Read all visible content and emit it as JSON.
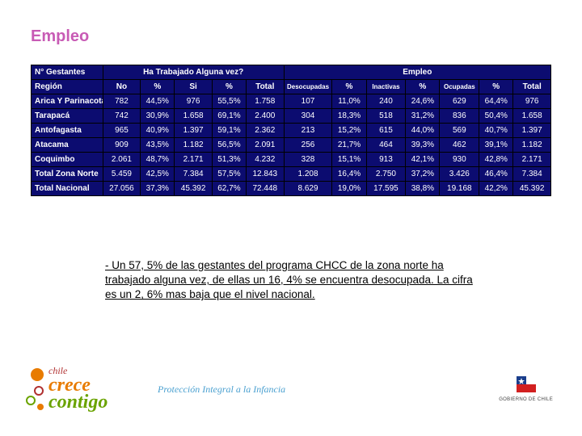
{
  "title": "Empleo",
  "table": {
    "header1": {
      "n_gestantes": "N° Gestantes",
      "ha_trabajado": "Ha Trabajado Alguna vez?",
      "empleo": "Empleo"
    },
    "header2": {
      "region": "Región",
      "no": "No",
      "no_pct": "%",
      "si": "Si",
      "si_pct": "%",
      "total1": "Total",
      "desoc": "Desocupadas",
      "desoc_pct": "%",
      "inact": "Inactivas",
      "inact_pct": "%",
      "ocup": "Ocupadas",
      "ocup_pct": "%",
      "total2": "Total"
    },
    "rows": [
      {
        "region": "Arica Y Parinacota",
        "no": "782",
        "no_pct": "44,5%",
        "si": "976",
        "si_pct": "55,5%",
        "total1": "1.758",
        "desoc": "107",
        "desoc_pct": "11,0%",
        "inact": "240",
        "inact_pct": "24,6%",
        "ocup": "629",
        "ocup_pct": "64,4%",
        "total2": "976"
      },
      {
        "region": "Tarapacá",
        "no": "742",
        "no_pct": "30,9%",
        "si": "1.658",
        "si_pct": "69,1%",
        "total1": "2.400",
        "desoc": "304",
        "desoc_pct": "18,3%",
        "inact": "518",
        "inact_pct": "31,2%",
        "ocup": "836",
        "ocup_pct": "50,4%",
        "total2": "1.658"
      },
      {
        "region": "Antofagasta",
        "no": "965",
        "no_pct": "40,9%",
        "si": "1.397",
        "si_pct": "59,1%",
        "total1": "2.362",
        "desoc": "213",
        "desoc_pct": "15,2%",
        "inact": "615",
        "inact_pct": "44,0%",
        "ocup": "569",
        "ocup_pct": "40,7%",
        "total2": "1.397"
      },
      {
        "region": "Atacama",
        "no": "909",
        "no_pct": "43,5%",
        "si": "1.182",
        "si_pct": "56,5%",
        "total1": "2.091",
        "desoc": "256",
        "desoc_pct": "21,7%",
        "inact": "464",
        "inact_pct": "39,3%",
        "ocup": "462",
        "ocup_pct": "39,1%",
        "total2": "1.182"
      },
      {
        "region": "Coquimbo",
        "no": "2.061",
        "no_pct": "48,7%",
        "si": "2.171",
        "si_pct": "51,3%",
        "total1": "4.232",
        "desoc": "328",
        "desoc_pct": "15,1%",
        "inact": "913",
        "inact_pct": "42,1%",
        "ocup": "930",
        "ocup_pct": "42,8%",
        "total2": "2.171"
      },
      {
        "region": "Total Zona Norte",
        "no": "5.459",
        "no_pct": "42,5%",
        "si": "7.384",
        "si_pct": "57,5%",
        "total1": "12.843",
        "desoc": "1.208",
        "desoc_pct": "16,4%",
        "inact": "2.750",
        "inact_pct": "37,2%",
        "ocup": "3.426",
        "ocup_pct": "46,4%",
        "total2": "7.384"
      },
      {
        "region": "Total Nacional",
        "no": "27.056",
        "no_pct": "37,3%",
        "si": "45.392",
        "si_pct": "62,7%",
        "total1": "72.448",
        "desoc": "8.629",
        "desoc_pct": "19,0%",
        "inact": "17.595",
        "inact_pct": "38,8%",
        "ocup": "19.168",
        "ocup_pct": "42,2%",
        "total2": "45.392"
      }
    ]
  },
  "bullet": "- Un 57, 5% de las gestantes del programa CHCC de la zona norte ha trabajado alguna vez, de ellas un 16, 4% se encuentra desocupada. La cifra es un 2, 6% mas baja que el nivel nacional.",
  "logo": {
    "chile": "chile",
    "crece": "crece",
    "contigo": "contigo"
  },
  "slogan": "Protección Integral a la Infancia",
  "gov": "GOBIERNO DE CHILE",
  "colors": {
    "title": "#c85bb5",
    "table_bg": "#0c0c70",
    "orange": "#e87b00",
    "green": "#6aa300",
    "red": "#b03030",
    "blue_slogan": "#4aa0d0"
  }
}
